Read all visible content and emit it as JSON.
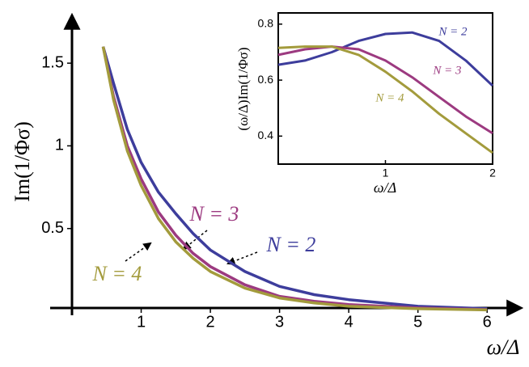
{
  "chart_data": [
    {
      "type": "line",
      "x_label": "ω/Δ",
      "y_label": "Im(1/Φσ)",
      "xlim": [
        0,
        6.5
      ],
      "ylim": [
        0,
        1.75
      ],
      "xticks": [
        1,
        2,
        3,
        4,
        5,
        6
      ],
      "yticks": [
        0.5,
        1,
        1.5
      ],
      "x": [
        0.45,
        0.6,
        0.8,
        1,
        1.25,
        1.5,
        1.75,
        2,
        2.5,
        3,
        3.5,
        4,
        5,
        6
      ],
      "series": [
        {
          "name": "N = 2",
          "color": "#3d3d9c",
          "values": [
            1.6,
            1.38,
            1.1,
            0.9,
            0.72,
            0.59,
            0.47,
            0.37,
            0.24,
            0.15,
            0.1,
            0.07,
            0.03,
            0.015
          ]
        },
        {
          "name": "N = 3",
          "color": "#9c3a80",
          "values": [
            1.6,
            1.3,
            1.0,
            0.8,
            0.6,
            0.46,
            0.35,
            0.27,
            0.16,
            0.09,
            0.06,
            0.04,
            0.02,
            0.01
          ]
        },
        {
          "name": "N = 4",
          "color": "#a39b3c",
          "values": [
            1.6,
            1.28,
            0.97,
            0.76,
            0.56,
            0.42,
            0.32,
            0.24,
            0.14,
            0.08,
            0.05,
            0.03,
            0.015,
            0.008
          ]
        }
      ]
    },
    {
      "type": "line",
      "x_label": "ω/Δ",
      "y_label": "(ω/Δ)Im(1/Φσ)",
      "xlim": [
        0,
        2
      ],
      "ylim": [
        0.3,
        0.84
      ],
      "xticks": [
        1,
        2
      ],
      "yticks": [
        0.4,
        0.6,
        0.8
      ],
      "x": [
        0,
        0.25,
        0.5,
        0.75,
        1,
        1.25,
        1.5,
        1.75,
        2
      ],
      "series": [
        {
          "name": "N = 2",
          "color": "#3d3d9c",
          "values": [
            0.655,
            0.67,
            0.7,
            0.74,
            0.765,
            0.77,
            0.74,
            0.67,
            0.58
          ]
        },
        {
          "name": "N = 3",
          "color": "#9c3a80",
          "values": [
            0.69,
            0.71,
            0.72,
            0.71,
            0.67,
            0.61,
            0.54,
            0.47,
            0.41
          ]
        },
        {
          "name": "N = 4",
          "color": "#a39b3c",
          "values": [
            0.715,
            0.72,
            0.72,
            0.69,
            0.63,
            0.56,
            0.48,
            0.41,
            0.34
          ]
        }
      ]
    }
  ]
}
